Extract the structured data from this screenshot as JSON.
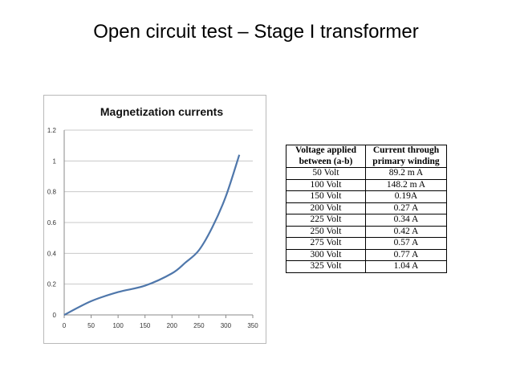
{
  "slide": {
    "title": "Open circuit test – Stage I transformer"
  },
  "chart_data": {
    "type": "line",
    "title": "Magnetization currents",
    "xlabel": "",
    "ylabel": "",
    "xlim": [
      0,
      350
    ],
    "ylim": [
      0,
      1.2
    ],
    "x_ticks": [
      0,
      50,
      100,
      150,
      200,
      250,
      300,
      350
    ],
    "y_ticks": [
      0,
      0.2,
      0.4,
      0.6,
      0.8,
      1,
      1.2
    ],
    "y_tick_labels": [
      "0",
      "0.2",
      "0.4",
      "0.6",
      "0.8",
      "1",
      "1.2"
    ],
    "grid": "horizontal",
    "legend": "none",
    "series_color": "#4f77ab",
    "series": [
      {
        "x": [
          0,
          50,
          100,
          150,
          200,
          225,
          250,
          275,
          300,
          325
        ],
        "values": [
          0,
          0.0892,
          0.1482,
          0.19,
          0.27,
          0.34,
          0.42,
          0.57,
          0.77,
          1.04
        ]
      }
    ]
  },
  "table": {
    "headers": [
      "Voltage applied between (a-b)",
      "Current through primary winding"
    ],
    "header_lines": [
      [
        "Voltage applied",
        "between (a-b)"
      ],
      [
        "Current through",
        "primary winding"
      ]
    ],
    "rows": [
      [
        "50 Volt",
        "89.2 m A"
      ],
      [
        "100 Volt",
        "148.2 m A"
      ],
      [
        "150 Volt",
        "0.19A"
      ],
      [
        "200 Volt",
        "0.27 A"
      ],
      [
        "225 Volt",
        "0.34 A"
      ],
      [
        "250 Volt",
        "0.42 A"
      ],
      [
        "275 Volt",
        "0.57 A"
      ],
      [
        "300 Volt",
        "0.77 A"
      ],
      [
        "325 Volt",
        "1.04 A"
      ]
    ]
  }
}
